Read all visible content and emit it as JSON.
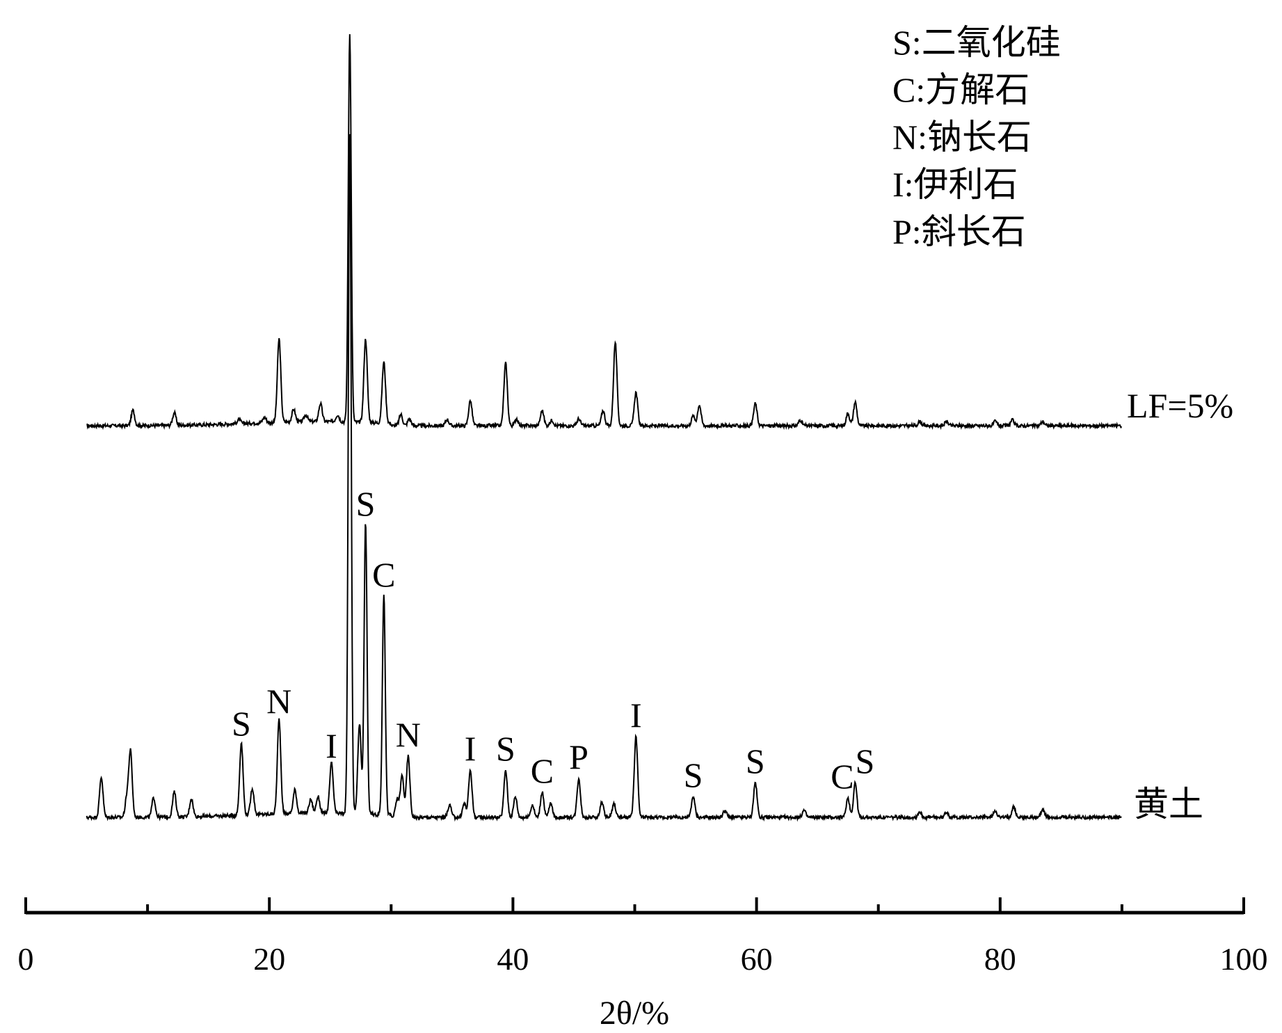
{
  "chart_data": {
    "type": "line",
    "xlabel": "2θ/%",
    "xlim": [
      0,
      100
    ],
    "ticks": [
      "0",
      "20",
      "40",
      "60",
      "80",
      "100"
    ],
    "legend": {
      "position": "top-right",
      "entries": [
        "S:二氧化硅",
        "C:方解石",
        "N:钠长石",
        "I:伊利石",
        "P:斜长石"
      ]
    },
    "series": [
      {
        "name": "LF=5%",
        "baseline": 0,
        "peaks": [
          [
            8.8,
            22
          ],
          [
            12.2,
            18
          ],
          [
            17.5,
            6
          ],
          [
            19.6,
            8
          ],
          [
            20.8,
            120
          ],
          [
            22.0,
            18
          ],
          [
            23.0,
            10
          ],
          [
            24.2,
            26
          ],
          [
            25.6,
            10
          ],
          [
            26.6,
            560
          ],
          [
            27.9,
            120
          ],
          [
            29.4,
            88
          ],
          [
            30.8,
            16
          ],
          [
            31.5,
            10
          ],
          [
            34.6,
            9
          ],
          [
            36.5,
            36
          ],
          [
            39.4,
            90
          ],
          [
            40.3,
            10
          ],
          [
            42.4,
            22
          ],
          [
            43.2,
            8
          ],
          [
            45.4,
            10
          ],
          [
            47.4,
            22
          ],
          [
            48.4,
            120
          ],
          [
            50.1,
            48
          ],
          [
            54.8,
            14
          ],
          [
            55.3,
            30
          ],
          [
            59.9,
            32
          ],
          [
            63.6,
            8
          ],
          [
            67.5,
            18
          ],
          [
            68.1,
            34
          ],
          [
            73.4,
            6
          ],
          [
            75.6,
            6
          ],
          [
            79.6,
            6
          ],
          [
            81.0,
            8
          ],
          [
            83.5,
            6
          ]
        ],
        "end": 90
      },
      {
        "name": "黄土",
        "baseline": 0,
        "peaks": [
          [
            6.2,
            58
          ],
          [
            8.3,
            28
          ],
          [
            8.6,
            94
          ],
          [
            10.5,
            28
          ],
          [
            12.2,
            36
          ],
          [
            13.6,
            26
          ],
          [
            17.7,
            104
          ],
          [
            18.6,
            38
          ],
          [
            20.8,
            136
          ],
          [
            22.1,
            34
          ],
          [
            23.4,
            20
          ],
          [
            24.0,
            24
          ],
          [
            25.1,
            72
          ],
          [
            26.6,
            975
          ],
          [
            27.4,
            130
          ],
          [
            27.9,
            420
          ],
          [
            29.4,
            318
          ],
          [
            30.5,
            26
          ],
          [
            30.9,
            60
          ],
          [
            31.4,
            88
          ],
          [
            34.8,
            18
          ],
          [
            36.0,
            20
          ],
          [
            36.5,
            68
          ],
          [
            39.4,
            68
          ],
          [
            40.2,
            30
          ],
          [
            41.6,
            18
          ],
          [
            42.4,
            36
          ],
          [
            43.1,
            20
          ],
          [
            45.4,
            56
          ],
          [
            47.3,
            22
          ],
          [
            48.3,
            20
          ],
          [
            50.1,
            116
          ],
          [
            54.8,
            30
          ],
          [
            57.4,
            10
          ],
          [
            59.9,
            50
          ],
          [
            63.9,
            10
          ],
          [
            67.5,
            28
          ],
          [
            68.1,
            50
          ],
          [
            73.4,
            8
          ],
          [
            75.6,
            8
          ],
          [
            79.6,
            10
          ],
          [
            81.1,
            16
          ],
          [
            83.5,
            12
          ]
        ],
        "end": 90
      }
    ],
    "annotations": [
      {
        "text": "S",
        "x": 17.7,
        "series": "黄土"
      },
      {
        "text": "N",
        "x": 20.8,
        "series": "黄土"
      },
      {
        "text": "I",
        "x": 25.1,
        "series": "黄土"
      },
      {
        "text": "S",
        "x": 27.9,
        "series": "黄土"
      },
      {
        "text": "C",
        "x": 29.4,
        "series": "黄土"
      },
      {
        "text": "N",
        "x": 31.4,
        "series": "黄土"
      },
      {
        "text": "I",
        "x": 36.5,
        "series": "黄土"
      },
      {
        "text": "S",
        "x": 39.4,
        "series": "黄土"
      },
      {
        "text": "C",
        "x": 42.4,
        "series": "黄土"
      },
      {
        "text": "P",
        "x": 45.4,
        "series": "黄土"
      },
      {
        "text": "I",
        "x": 50.1,
        "series": "黄土"
      },
      {
        "text": "S",
        "x": 54.8,
        "series": "黄土"
      },
      {
        "text": "S",
        "x": 59.9,
        "series": "黄土"
      },
      {
        "text": "C",
        "x": 67.5,
        "series": "黄土"
      },
      {
        "text": "S",
        "x": 68.1,
        "series": "黄土"
      }
    ]
  }
}
